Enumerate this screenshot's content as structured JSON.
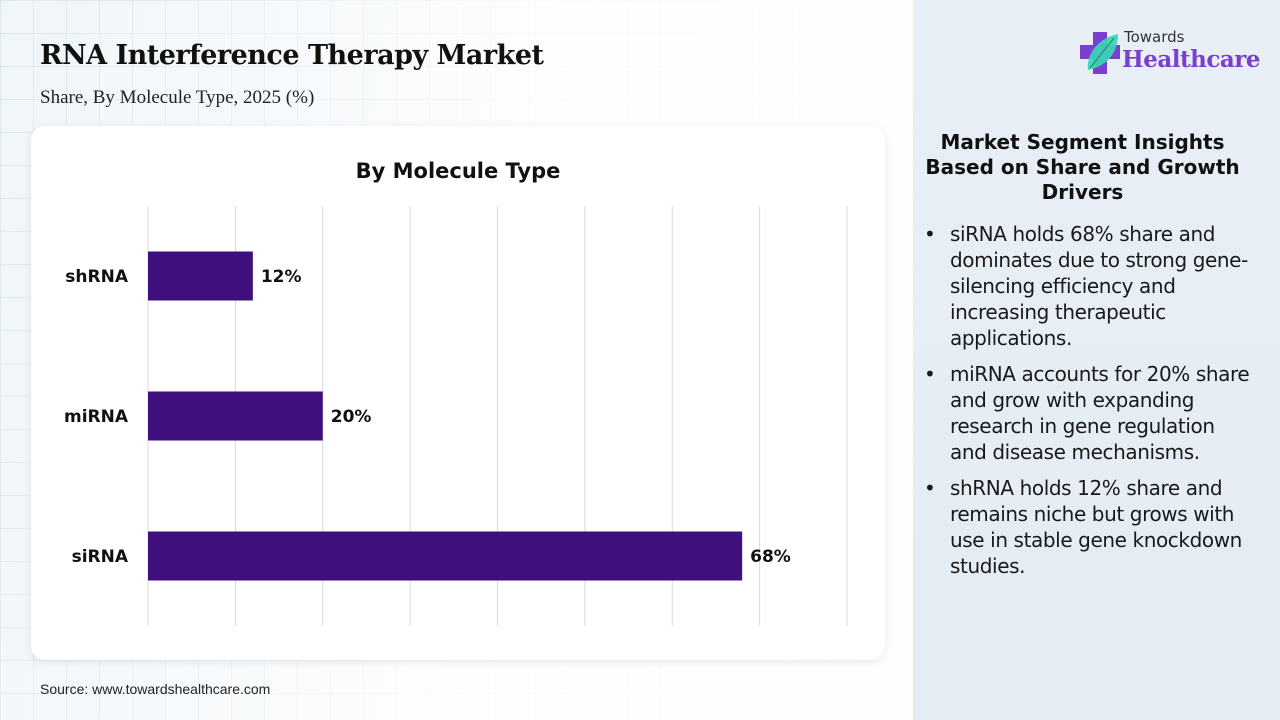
{
  "header": {
    "title": "RNA Interference Therapy Market",
    "subtitle": "Share, By Molecule Type, 2025 (%)"
  },
  "logo": {
    "line1": "Towards",
    "line2": "Healthcare",
    "icon": "cross-leaf-icon"
  },
  "chart_data": {
    "type": "bar",
    "orientation": "horizontal",
    "title": "By Molecule Type",
    "categories": [
      "shRNA",
      "miRNA",
      "siRNA"
    ],
    "values": [
      12,
      20,
      68
    ],
    "data_labels": [
      "12%",
      "20%",
      "68%"
    ],
    "xlabel": "",
    "ylabel": "",
    "xlim": [
      0,
      80
    ],
    "grid_step": 10,
    "grid": true,
    "x_tick_labels_visible": false,
    "bar_color": "#3f0f7d"
  },
  "insights": {
    "title": "Market Segment Insights Based on Share and Growth Drivers",
    "items": [
      "siRNA holds 68% share and dominates due to strong gene-silencing efficiency and increasing therapeutic applications.",
      "miRNA accounts for 20% share and grow with expanding research in gene regulation and disease mechanisms.",
      "shRNA holds 12% share and remains niche but grows with use in stable gene knockdown studies."
    ]
  },
  "footer": {
    "source": "Source: www.towardshealthcare.com"
  },
  "colors": {
    "brand_purple": "#7a3fd0",
    "bar": "#3f0f7d",
    "leaf": "#38d6b5"
  }
}
